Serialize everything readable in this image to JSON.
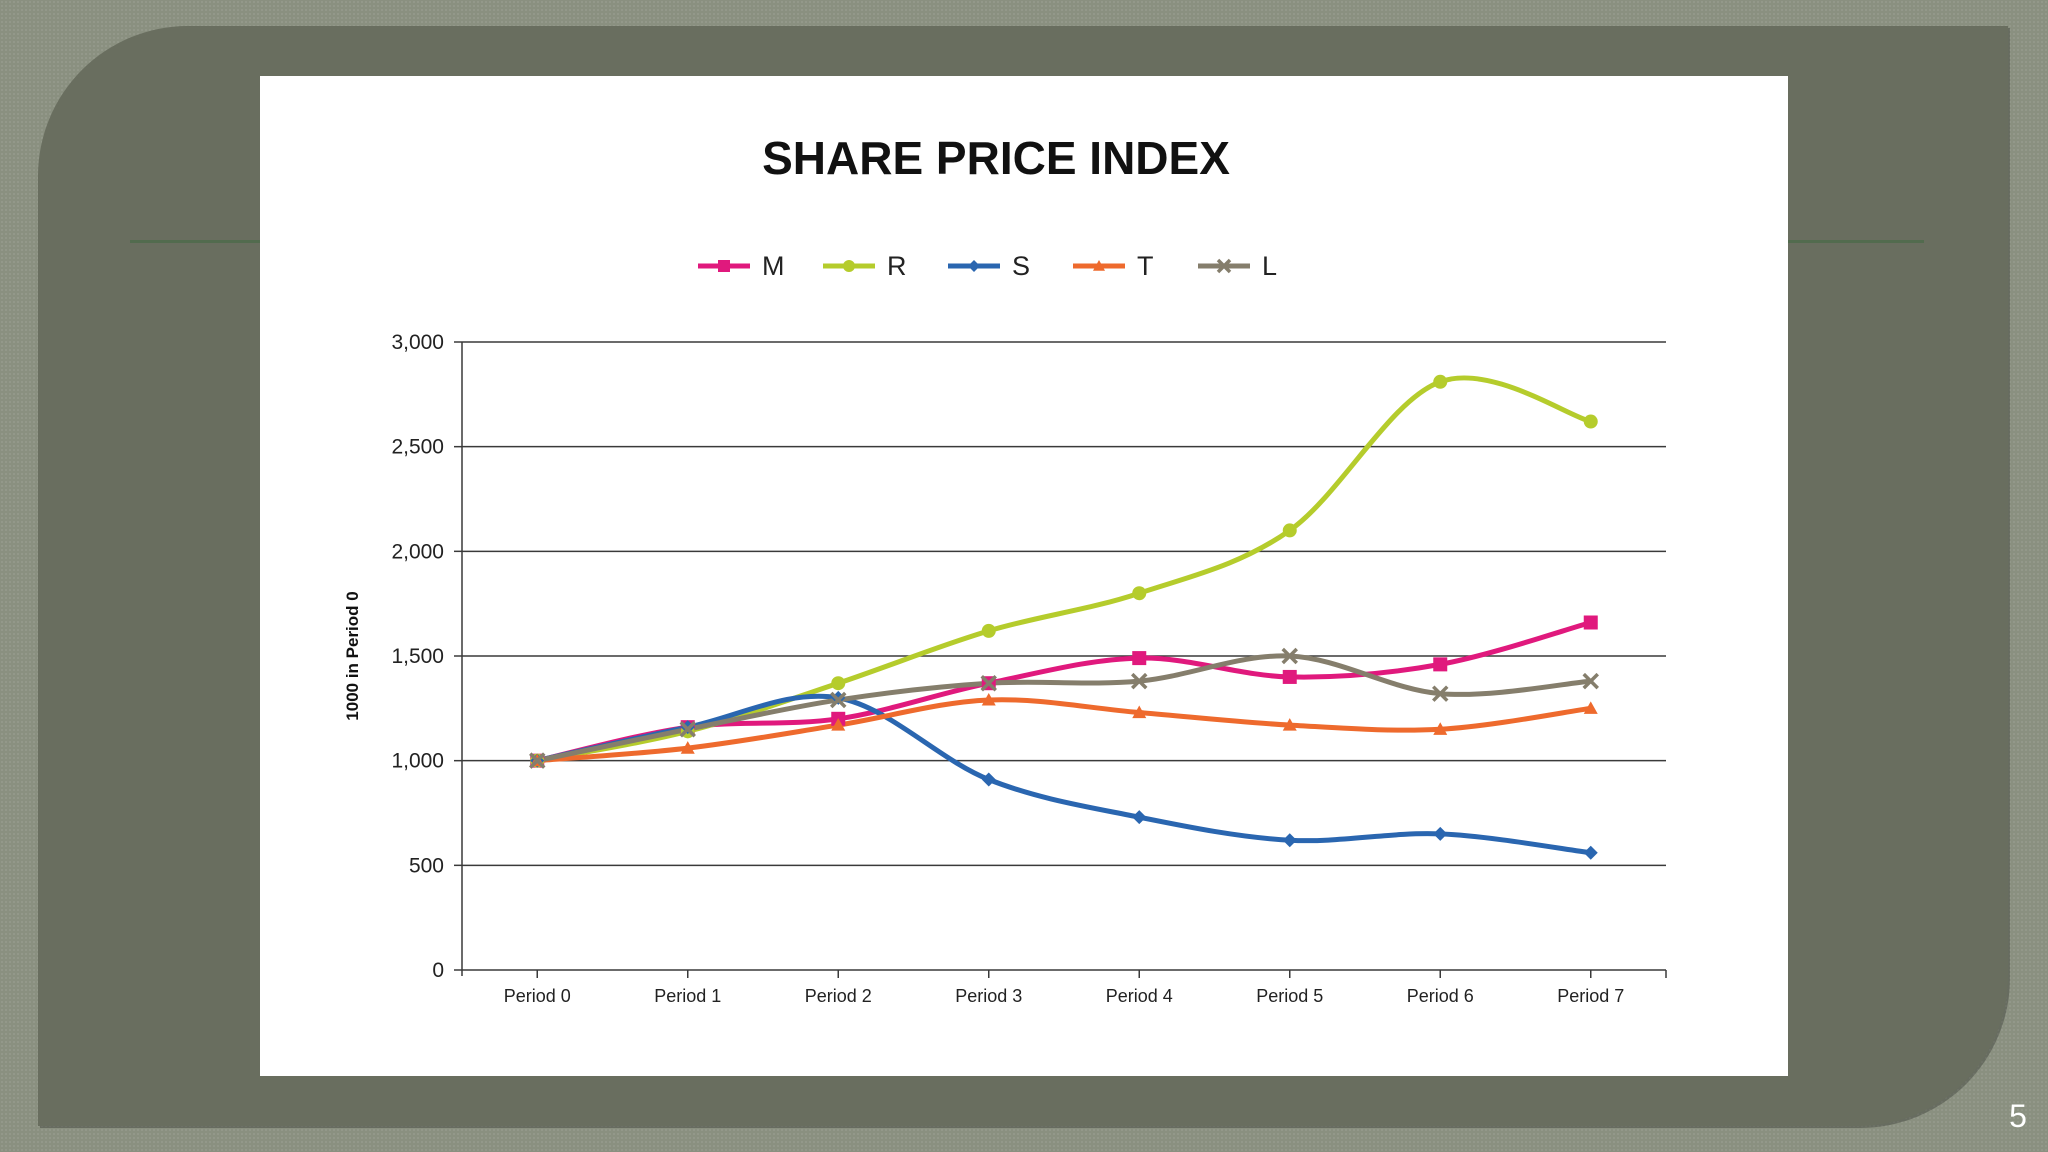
{
  "slide": {
    "page_number": "5"
  },
  "chart_data": {
    "type": "line",
    "title": "SHARE PRICE INDEX",
    "xlabel": "",
    "ylabel": "1000 in Period 0",
    "categories": [
      "Period 0",
      "Period 1",
      "Period 2",
      "Period 3",
      "Period 4",
      "Period 5",
      "Period 6",
      "Period 7"
    ],
    "ylim": [
      0,
      3000
    ],
    "yticks": [
      0,
      500,
      1000,
      1500,
      2000,
      2500,
      3000
    ],
    "ytick_labels": [
      "0",
      "500",
      "1,000",
      "1,500",
      "2,000",
      "2,500",
      "3,000"
    ],
    "grid": true,
    "legend_position": "top",
    "smooth": true,
    "series": [
      {
        "name": "M",
        "color": "#e0197d",
        "marker": "square",
        "values": [
          1000,
          1160,
          1200,
          1370,
          1490,
          1400,
          1460,
          1660
        ]
      },
      {
        "name": "R",
        "color": "#b5cc2c",
        "marker": "circle",
        "values": [
          1000,
          1140,
          1370,
          1620,
          1800,
          2100,
          2810,
          2620
        ]
      },
      {
        "name": "S",
        "color": "#2a66b0",
        "marker": "diamond",
        "values": [
          1000,
          1160,
          1300,
          910,
          730,
          620,
          650,
          560
        ]
      },
      {
        "name": "T",
        "color": "#ee6a2d",
        "marker": "triangle",
        "values": [
          1000,
          1060,
          1170,
          1290,
          1230,
          1170,
          1150,
          1250
        ]
      },
      {
        "name": "L",
        "color": "#857e6c",
        "marker": "x",
        "values": [
          1000,
          1150,
          1290,
          1370,
          1380,
          1500,
          1320,
          1380
        ]
      }
    ]
  }
}
